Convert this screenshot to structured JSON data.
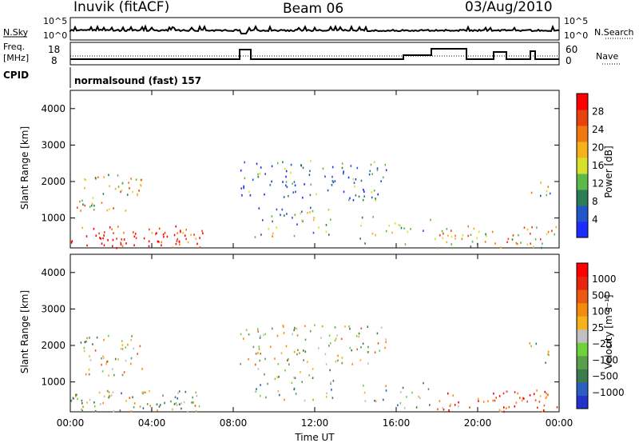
{
  "header": {
    "radar": "Inuvik (fitACF)",
    "beam": "Beam 06",
    "date": "03/Aug/2010"
  },
  "summary": {
    "left_label_1": "N.Sky",
    "left_ticks_1": [
      "10^5",
      "10^0"
    ],
    "right_label_1": "N.Search",
    "right_ticks_1": [
      "10^5",
      "10^0"
    ],
    "left_label_2_line1": "Freq.",
    "left_label_2_line2": "[MHz]",
    "left_ticks_2": [
      "18",
      "8"
    ],
    "right_label_2": "Nave",
    "right_ticks_2": [
      "60",
      "0"
    ],
    "cpid_label": "CPID",
    "cpid_text": "normalsound (fast) 157"
  },
  "chart_data": [
    {
      "type": "heatmap",
      "name": "power",
      "ylabel": "Slant Range [km]",
      "xlabel": "Time UT",
      "x_ticks": [
        "00:00",
        "04:00",
        "08:00",
        "12:00",
        "16:00",
        "20:00",
        "00:00"
      ],
      "y_ticks": [
        "1000",
        "2000",
        "3000",
        "4000"
      ],
      "ylim": [
        180,
        4500
      ],
      "colorbar_label": "Power [dB]",
      "colorbar_ticks": [
        "28",
        "24",
        "20",
        "16",
        "12",
        "8",
        "4"
      ],
      "colors": [
        "#1c2cff",
        "#2255c8",
        "#2a7d55",
        "#5fb84a",
        "#d7e02a",
        "#f4b21c",
        "#f07a10",
        "#e8420f",
        "#ff0000"
      ]
    },
    {
      "type": "heatmap",
      "name": "velocity",
      "ylabel": "Slant Range [km]",
      "xlabel": "Time UT",
      "x_ticks": [
        "00:00",
        "04:00",
        "08:00",
        "12:00",
        "16:00",
        "20:00",
        "00:00"
      ],
      "y_ticks": [
        "1000",
        "2000",
        "3000",
        "4000"
      ],
      "ylim": [
        180,
        4500
      ],
      "colorbar_label": "Velocity [m s⁻¹]",
      "colorbar_ticks": [
        "1000",
        "500",
        "100",
        "25",
        "−25",
        "−100",
        "−500",
        "−1000"
      ],
      "colors": [
        "#2233cc",
        "#2a5fbf",
        "#3d7a4c",
        "#5aa04a",
        "#6fd23a",
        "#c0c0c0",
        "#f5b21a",
        "#f18c0f",
        "#ea5a12",
        "#e8260e",
        "#ff0000"
      ]
    }
  ]
}
